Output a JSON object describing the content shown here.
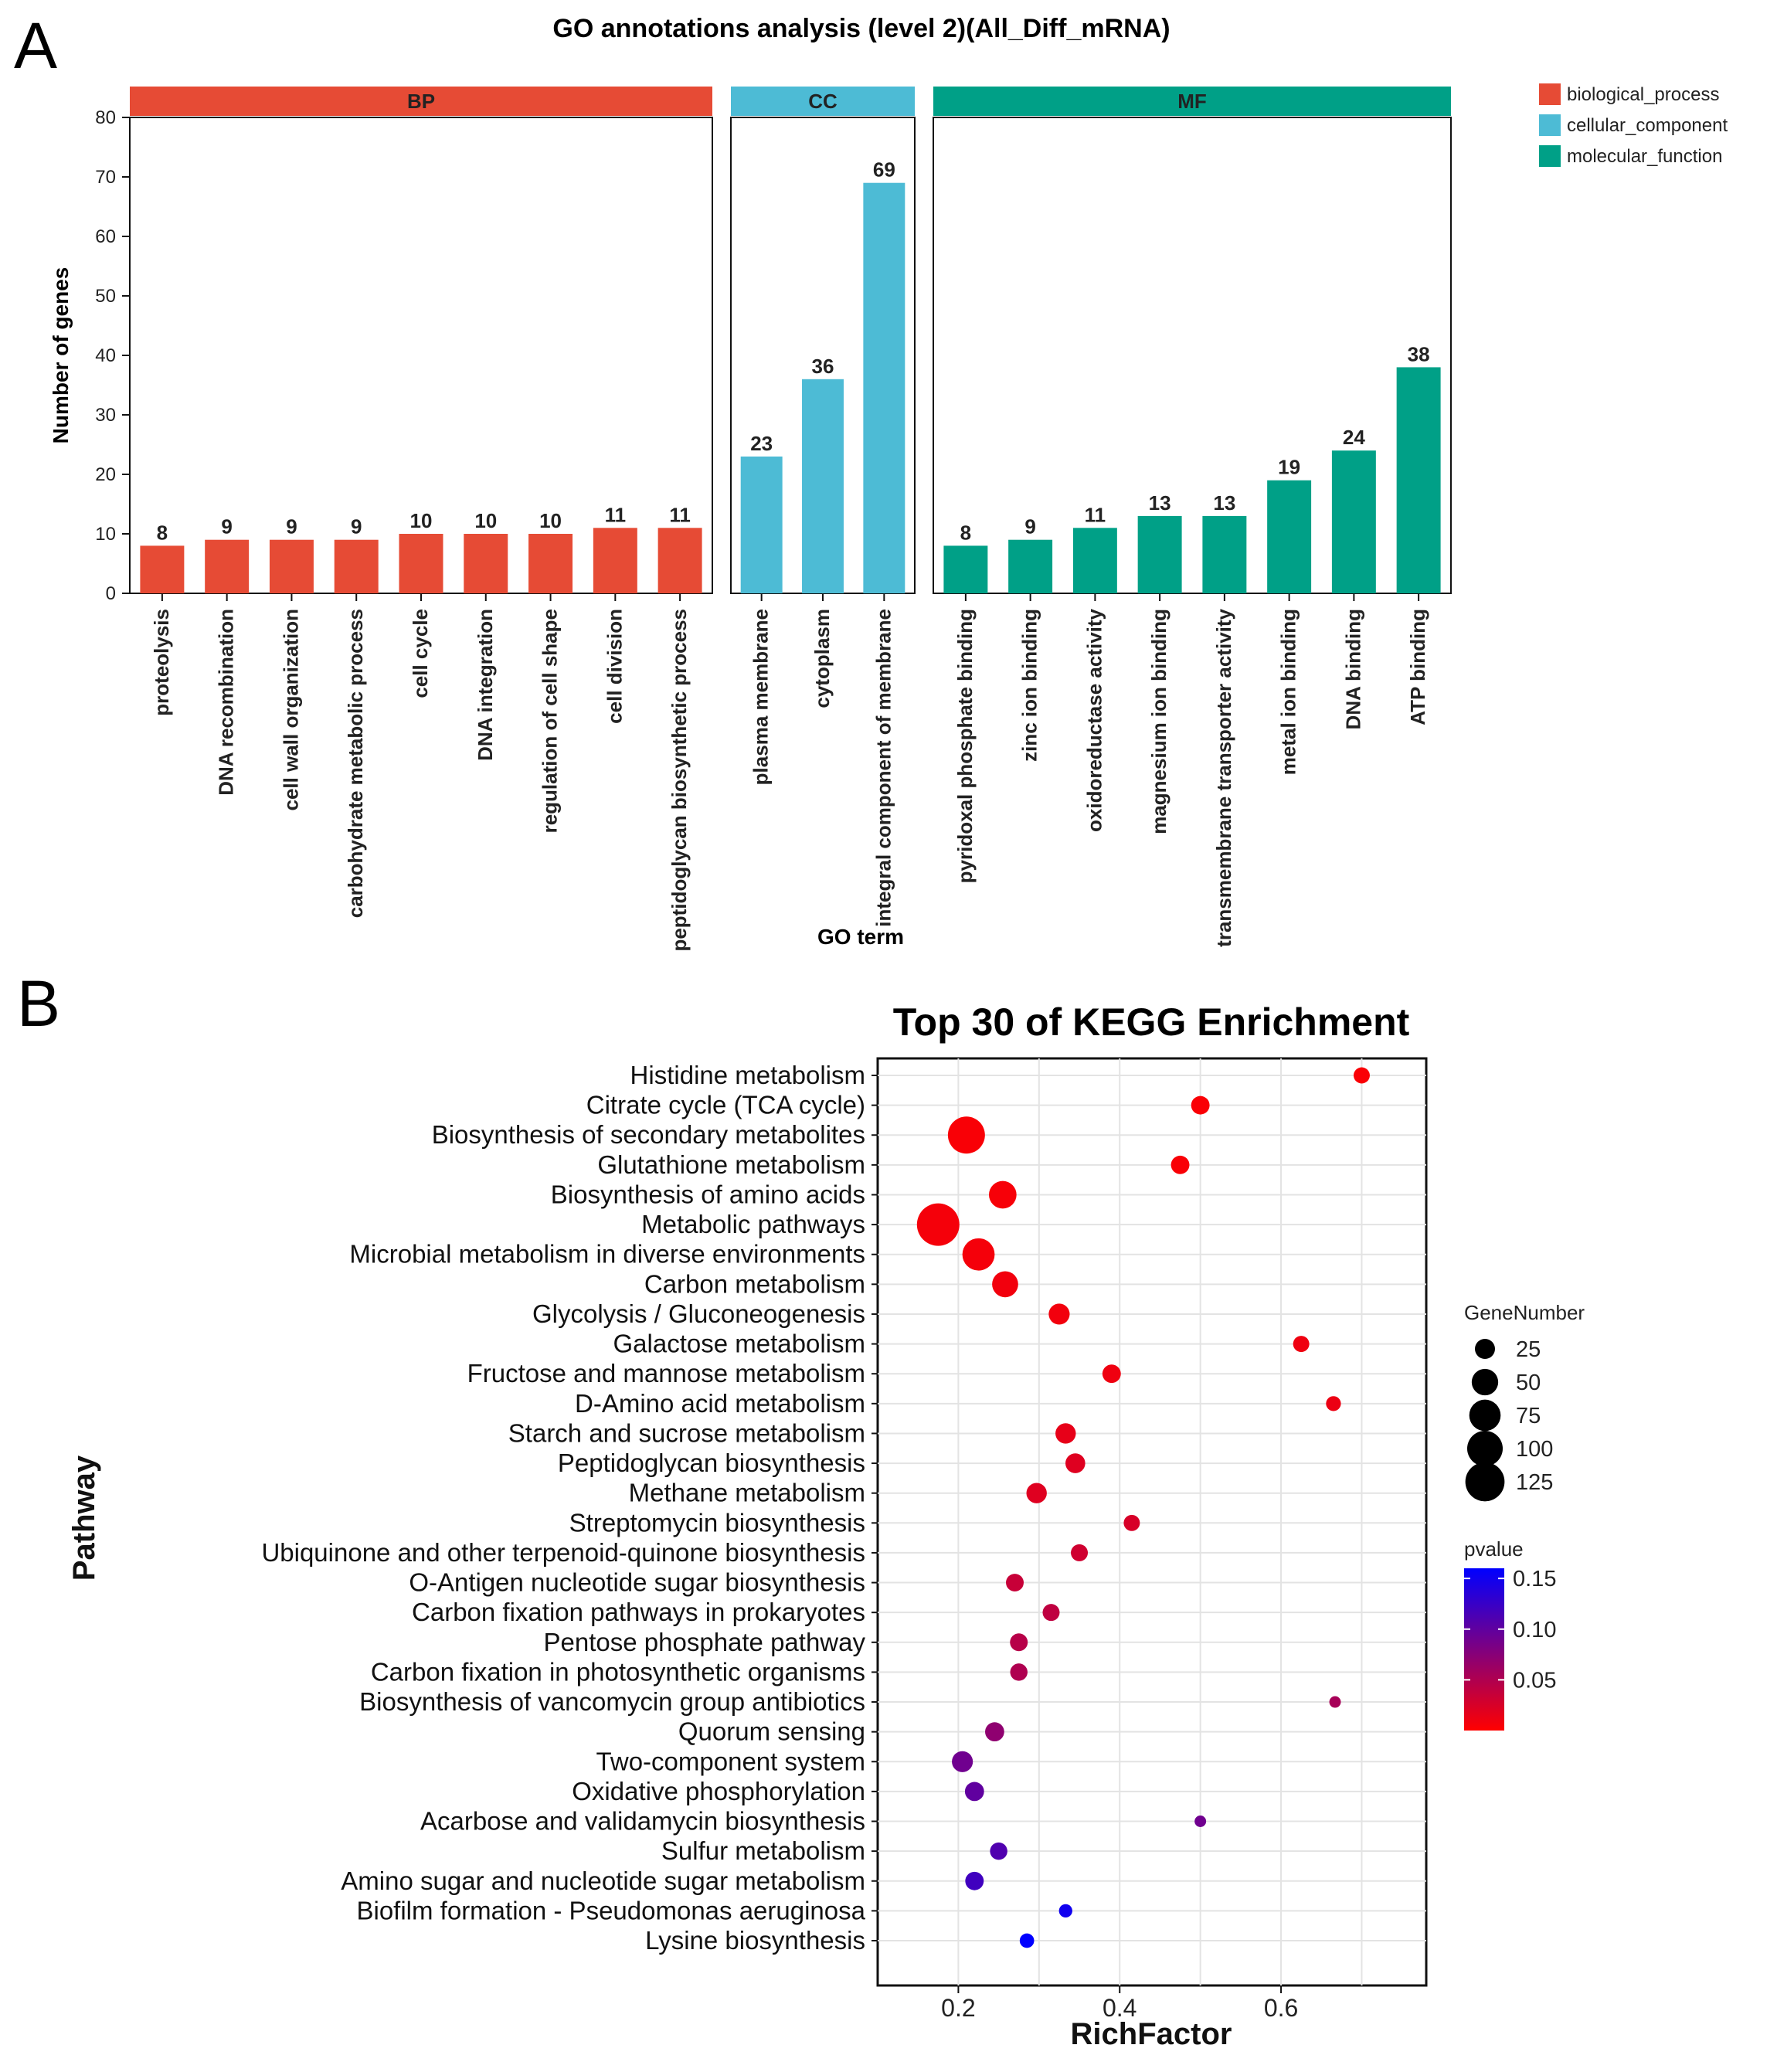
{
  "panels": {
    "a_letter": "A",
    "b_letter": "B"
  },
  "chart_data": [
    {
      "type": "bar",
      "title": "GO annotations analysis (level 2)(All_Diff_mRNA)",
      "xlabel": "GO term",
      "ylabel": "Number of genes",
      "ylim": [
        0,
        80
      ],
      "yticks": [
        0,
        10,
        20,
        30,
        40,
        50,
        60,
        70,
        80
      ],
      "facets": [
        {
          "key": "BP",
          "legend": "biological_process",
          "color": "#e64b35",
          "categories": [
            "proteolysis",
            "DNA recombination",
            "cell wall organization",
            "carbohydrate metabolic process",
            "cell cycle",
            "DNA integration",
            "regulation of cell shape",
            "cell division",
            "peptidoglycan biosynthetic process"
          ],
          "values": [
            8,
            9,
            9,
            9,
            10,
            10,
            10,
            11,
            11
          ]
        },
        {
          "key": "CC",
          "legend": "cellular_component",
          "color": "#4dbbd5",
          "categories": [
            "plasma membrane",
            "cytoplasm",
            "integral component of membrane"
          ],
          "values": [
            23,
            36,
            69
          ]
        },
        {
          "key": "MF",
          "legend": "molecular_function",
          "color": "#00a087",
          "categories": [
            "pyridoxal phosphate binding",
            "zinc ion binding",
            "oxidoreductase activity",
            "magnesium ion binding",
            "transmembrane transporter activity",
            "metal ion binding",
            "DNA binding",
            "ATP binding"
          ],
          "values": [
            8,
            9,
            11,
            13,
            13,
            19,
            24,
            38
          ]
        }
      ]
    },
    {
      "type": "scatter",
      "title": "Top 30 of KEGG Enrichment",
      "xlabel": "RichFactor",
      "ylabel": "Pathway",
      "xlim": [
        0.1,
        0.78
      ],
      "xticks": [
        0.2,
        0.4,
        0.6
      ],
      "xtick_labels": [
        "0.2",
        "0.4",
        "0.6"
      ],
      "size_legend": {
        "title": "GeneNumber",
        "values": [
          25,
          50,
          75,
          100,
          125
        ],
        "labels": [
          "25",
          "50",
          "75",
          "100",
          "125"
        ]
      },
      "color_legend": {
        "title": "pvalue",
        "range": [
          0,
          0.16
        ],
        "ticks": [
          0.15,
          0.1,
          0.05
        ],
        "tick_labels": [
          "0.15",
          "0.10",
          "0.05"
        ],
        "low_color": "#ff0000",
        "high_color": "#0000ff"
      },
      "points": [
        {
          "pathway": "Histidine metabolism",
          "rich_factor": 0.7,
          "gene_number": 14,
          "pvalue": 0.003
        },
        {
          "pathway": "Citrate cycle (TCA cycle)",
          "rich_factor": 0.5,
          "gene_number": 20,
          "pvalue": 0.003
        },
        {
          "pathway": "Biosynthesis of secondary metabolites",
          "rich_factor": 0.21,
          "gene_number": 110,
          "pvalue": 0.004
        },
        {
          "pathway": "Glutathione metabolism",
          "rich_factor": 0.475,
          "gene_number": 20,
          "pvalue": 0.004
        },
        {
          "pathway": "Biosynthesis of amino acids",
          "rich_factor": 0.255,
          "gene_number": 55,
          "pvalue": 0.005
        },
        {
          "pathway": "Metabolic pathways",
          "rich_factor": 0.175,
          "gene_number": 150,
          "pvalue": 0.006
        },
        {
          "pathway": "Microbial metabolism in diverse environments",
          "rich_factor": 0.225,
          "gene_number": 80,
          "pvalue": 0.006
        },
        {
          "pathway": "Carbon metabolism",
          "rich_factor": 0.258,
          "gene_number": 48,
          "pvalue": 0.008
        },
        {
          "pathway": "Glycolysis / Gluconeogenesis",
          "rich_factor": 0.325,
          "gene_number": 28,
          "pvalue": 0.008
        },
        {
          "pathway": "Galactose metabolism",
          "rich_factor": 0.625,
          "gene_number": 14,
          "pvalue": 0.01
        },
        {
          "pathway": "Fructose and mannose metabolism",
          "rich_factor": 0.39,
          "gene_number": 20,
          "pvalue": 0.01
        },
        {
          "pathway": "D-Amino acid metabolism",
          "rich_factor": 0.665,
          "gene_number": 11,
          "pvalue": 0.012
        },
        {
          "pathway": "Starch and sucrose metabolism",
          "rich_factor": 0.333,
          "gene_number": 26,
          "pvalue": 0.015
        },
        {
          "pathway": "Peptidoglycan biosynthesis",
          "rich_factor": 0.345,
          "gene_number": 24,
          "pvalue": 0.02
        },
        {
          "pathway": "Methane metabolism",
          "rich_factor": 0.297,
          "gene_number": 26,
          "pvalue": 0.02
        },
        {
          "pathway": "Streptomycin biosynthesis",
          "rich_factor": 0.415,
          "gene_number": 14,
          "pvalue": 0.025
        },
        {
          "pathway": "Ubiquinone and other terpenoid-quinone biosynthesis",
          "rich_factor": 0.35,
          "gene_number": 16,
          "pvalue": 0.03
        },
        {
          "pathway": "O-Antigen nucleotide sugar biosynthesis",
          "rich_factor": 0.27,
          "gene_number": 18,
          "pvalue": 0.035
        },
        {
          "pathway": "Carbon fixation pathways in prokaryotes",
          "rich_factor": 0.315,
          "gene_number": 16,
          "pvalue": 0.04
        },
        {
          "pathway": "Pentose phosphate pathway",
          "rich_factor": 0.275,
          "gene_number": 18,
          "pvalue": 0.045
        },
        {
          "pathway": "Carbon fixation in photosynthetic organisms",
          "rich_factor": 0.275,
          "gene_number": 17,
          "pvalue": 0.05
        },
        {
          "pathway": "Biosynthesis of vancomycin group antibiotics",
          "rich_factor": 0.667,
          "gene_number": 5,
          "pvalue": 0.055
        },
        {
          "pathway": "Quorum sensing",
          "rich_factor": 0.245,
          "gene_number": 22,
          "pvalue": 0.07
        },
        {
          "pathway": "Two-component system",
          "rich_factor": 0.205,
          "gene_number": 28,
          "pvalue": 0.09
        },
        {
          "pathway": "Oxidative phosphorylation",
          "rich_factor": 0.22,
          "gene_number": 22,
          "pvalue": 0.1
        },
        {
          "pathway": "Acarbose and validamycin biosynthesis",
          "rich_factor": 0.5,
          "gene_number": 5,
          "pvalue": 0.09
        },
        {
          "pathway": "Sulfur metabolism",
          "rich_factor": 0.25,
          "gene_number": 17,
          "pvalue": 0.11
        },
        {
          "pathway": "Amino sugar and nucleotide sugar metabolism",
          "rich_factor": 0.22,
          "gene_number": 20,
          "pvalue": 0.12
        },
        {
          "pathway": "Biofilm formation - Pseudomonas aeruginosa",
          "rich_factor": 0.333,
          "gene_number": 8,
          "pvalue": 0.15
        },
        {
          "pathway": "Lysine biosynthesis",
          "rich_factor": 0.285,
          "gene_number": 10,
          "pvalue": 0.16
        }
      ]
    }
  ]
}
